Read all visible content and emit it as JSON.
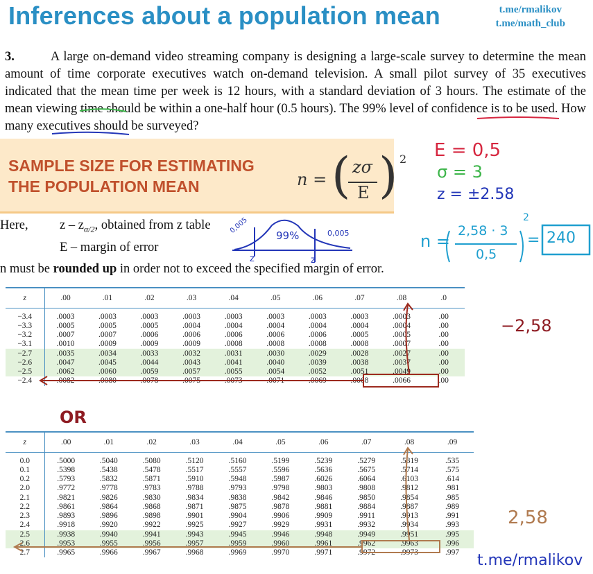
{
  "header": {
    "title": "Inferences about a population mean",
    "handle1": "t.me/rmalikov",
    "handle2": "t.me/math_club"
  },
  "problem": {
    "number": "3.",
    "text_before": "A large on-demand video streaming company is designing a large-scale survey to determine the mean amount of time corporate executives watch on-demand television. A small pilot survey of 35 executives indicated that the mean time per week is 12 hours, with a standard deviation of ",
    "sd_underlined": "3 hours.",
    "text_mid": " The estimate of the mean viewing time should be within a ",
    "margin_underlined": "one-half hour",
    "text_mid2": " (0.5 hours). ",
    "level_underlined": "The 99% level",
    "text_end": " of confidence is to be used. How many executives should be surveyed?"
  },
  "banner": {
    "line1": "SAMPLE SIZE FOR ESTIMATING",
    "line2": "THE POPULATION MEAN",
    "f_lhs": "n =",
    "f_num": "zσ",
    "f_den": "E",
    "f_exp": "2"
  },
  "definitions": {
    "here": "Here,",
    "z_def": "z – z",
    "z_sub": "α/2",
    "z_rest": ", obtained from z table",
    "e_def": "E – margin of error",
    "rounding_a": "n must be ",
    "rounding_bold": "rounded up",
    "rounding_b": " in order not to exceed the specified margin of error."
  },
  "handwriting": {
    "e_val": "E = 0,5",
    "sigma_val": "σ = 3",
    "z_val": "z = ±2.58",
    "n_lhs": "n =",
    "n_expr_num": "2,58 · 3",
    "n_expr_den": "0,5",
    "n_exp": "2",
    "n_result": "240",
    "curve_pct": "99%",
    "tail_left": "0,005",
    "tail_right": "0,005",
    "neg_z": "−2,58",
    "or": "OR",
    "pos_z": "2,58",
    "signature": "t.me/rmalikov",
    "z_mark_left": "z",
    "z_mark_right": "z"
  },
  "table1": {
    "headers": [
      "z",
      ".00",
      ".01",
      ".02",
      ".03",
      ".04",
      ".05",
      ".06",
      ".07",
      ".08",
      ".0"
    ],
    "rows": [
      [
        "−3.4",
        ".0003",
        ".0003",
        ".0003",
        ".0003",
        ".0003",
        ".0003",
        ".0003",
        ".0003",
        ".0003",
        ".00"
      ],
      [
        "−3.3",
        ".0005",
        ".0005",
        ".0005",
        ".0004",
        ".0004",
        ".0004",
        ".0004",
        ".0004",
        ".0004",
        ".00"
      ],
      [
        "−3.2",
        ".0007",
        ".0007",
        ".0006",
        ".0006",
        ".0006",
        ".0006",
        ".0006",
        ".0005",
        ".0005",
        ".00"
      ],
      [
        "−3.1",
        ".0010",
        ".0009",
        ".0009",
        ".0009",
        ".0008",
        ".0008",
        ".0008",
        ".0008",
        ".0007",
        ".00"
      ],
      [
        "−2.7",
        ".0035",
        ".0034",
        ".0033",
        ".0032",
        ".0031",
        ".0030",
        ".0029",
        ".0028",
        ".0027",
        ".00"
      ],
      [
        "−2.6",
        ".0047",
        ".0045",
        ".0044",
        ".0043",
        ".0041",
        ".0040",
        ".0039",
        ".0038",
        ".0037",
        ".00"
      ],
      [
        "−2.5",
        ".0062",
        ".0060",
        ".0059",
        ".0057",
        ".0055",
        ".0054",
        ".0052",
        ".0051",
        ".0049",
        ".00"
      ],
      [
        "−2.4",
        ".0082",
        ".0080",
        ".0078",
        ".0075",
        ".0073",
        ".0071",
        ".0069",
        ".0068",
        ".0066",
        ".00"
      ]
    ]
  },
  "table2": {
    "headers": [
      "z",
      ".00",
      ".01",
      ".02",
      ".03",
      ".04",
      ".05",
      ".06",
      ".07",
      ".08",
      ".09"
    ],
    "rows": [
      [
        "0.0",
        ".5000",
        ".5040",
        ".5080",
        ".5120",
        ".5160",
        ".5199",
        ".5239",
        ".5279",
        ".5319",
        ".535"
      ],
      [
        "0.1",
        ".5398",
        ".5438",
        ".5478",
        ".5517",
        ".5557",
        ".5596",
        ".5636",
        ".5675",
        ".5714",
        ".575"
      ],
      [
        "0.2",
        ".5793",
        ".5832",
        ".5871",
        ".5910",
        ".5948",
        ".5987",
        ".6026",
        ".6064",
        ".6103",
        ".614"
      ],
      [
        "2.0",
        ".9772",
        ".9778",
        ".9783",
        ".9788",
        ".9793",
        ".9798",
        ".9803",
        ".9808",
        ".9812",
        ".981"
      ],
      [
        "2.1",
        ".9821",
        ".9826",
        ".9830",
        ".9834",
        ".9838",
        ".9842",
        ".9846",
        ".9850",
        ".9854",
        ".985"
      ],
      [
        "2.2",
        ".9861",
        ".9864",
        ".9868",
        ".9871",
        ".9875",
        ".9878",
        ".9881",
        ".9884",
        ".9887",
        ".989"
      ],
      [
        "2.3",
        ".9893",
        ".9896",
        ".9898",
        ".9901",
        ".9904",
        ".9906",
        ".9909",
        ".9911",
        ".9913",
        ".991"
      ],
      [
        "2.4",
        ".9918",
        ".9920",
        ".9922",
        ".9925",
        ".9927",
        ".9929",
        ".9931",
        ".9932",
        ".9934",
        ".993"
      ],
      [
        "2.5",
        ".9938",
        ".9940",
        ".9941",
        ".9943",
        ".9945",
        ".9946",
        ".9948",
        ".9949",
        ".9951",
        ".995"
      ],
      [
        "2.6",
        ".9953",
        ".9955",
        ".9956",
        ".9957",
        ".9959",
        ".9960",
        ".9961",
        ".9962",
        ".9963",
        ".996"
      ],
      [
        "2.7",
        ".9965",
        ".9966",
        ".9967",
        ".9968",
        ".9969",
        ".9970",
        ".9971",
        ".9972",
        ".9973",
        ".997"
      ]
    ]
  },
  "colors": {
    "title_blue": "#2a8fc4",
    "banner_bg": "#fde9c9",
    "banner_text": "#c0502c",
    "ink_red": "#d6263f",
    "ink_green": "#3db54a",
    "ink_blue": "#2336b8",
    "ink_cyan": "#1f9fcf",
    "ink_darkred": "#8e1b22",
    "ink_brown": "#b07a4f",
    "table_line": "#4a90c2",
    "table_hl": "#e3f2dc"
  }
}
